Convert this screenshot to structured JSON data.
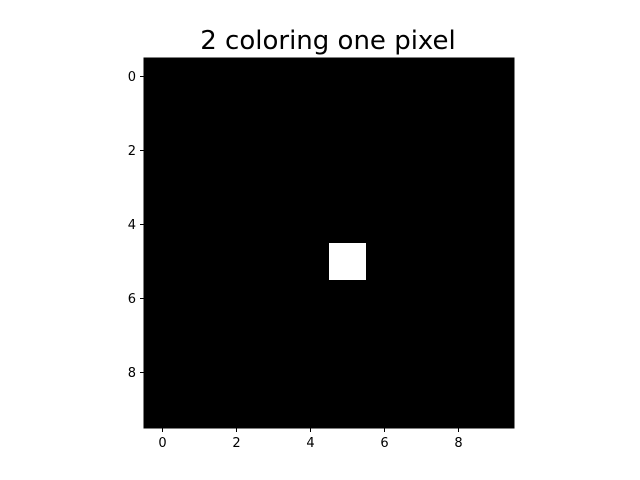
{
  "chart_data": {
    "type": "heatmap",
    "title": "2 coloring one pixel",
    "xlabel": "",
    "ylabel": "",
    "rows": 10,
    "cols": 10,
    "xlim": [
      -0.5,
      9.5
    ],
    "ylim": [
      9.5,
      -0.5
    ],
    "x_ticks": [
      0,
      2,
      4,
      6,
      8
    ],
    "y_ticks": [
      0,
      2,
      4,
      6,
      8
    ],
    "grid": false,
    "colormap": [
      "#000000",
      "#ffffff"
    ],
    "background_value": 0,
    "highlighted_cells": [
      {
        "row": 5,
        "col": 5,
        "value": 1
      }
    ]
  }
}
